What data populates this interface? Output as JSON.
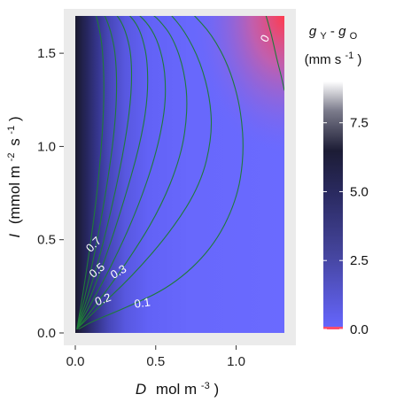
{
  "chart_data": {
    "type": "heatmap",
    "subtype": "filled-contour",
    "title": "",
    "x": {
      "variable": "D",
      "unit_base": "mol m",
      "unit_exponent": "-3",
      "range": [
        0,
        1.3
      ],
      "ticks": [
        0.0,
        0.5,
        1.0
      ],
      "tick_labels": [
        "0.0",
        "0.5",
        "1.0"
      ]
    },
    "y": {
      "variable": "I",
      "unit_base_1": "mmol m",
      "unit_exponent_1": "-2",
      "unit_base_2": "s",
      "unit_exponent_2": "-1",
      "range": [
        0,
        1.7
      ],
      "ticks": [
        0.0,
        0.5,
        1.0,
        1.5
      ],
      "tick_labels": [
        "0.0",
        "0.5",
        "1.0",
        "1.5"
      ]
    },
    "fill": {
      "legend_title_g": "g",
      "legend_title_y": "Y",
      "legend_title_sep": " - ",
      "legend_title_o": "O",
      "legend_unit": "(mm s",
      "legend_unit_exp": "-1",
      "legend_unit_close": ")",
      "range": [
        0,
        9
      ],
      "ticks": [
        0.0,
        2.5,
        5.0,
        7.5
      ],
      "tick_labels": [
        "0.0",
        "2.5",
        "5.0",
        "7.5"
      ],
      "colors": {
        "low_negative": "#ff4d6d",
        "zero": "#6666ff",
        "mid": "#2b2b6e",
        "high": "#1a1a2e",
        "top": "#ffffff"
      }
    },
    "contours": [
      {
        "level": "0",
        "D": [
          1.3,
          1.28,
          1.25,
          1.22,
          1.18
        ],
        "I": [
          1.3,
          1.38,
          1.48,
          1.6,
          1.72
        ]
      },
      {
        "level": "0.1",
        "D": [
          0.02,
          0.1,
          0.3,
          0.6,
          0.85,
          1.0,
          1.05,
          1.03,
          0.96,
          0.85,
          0.72
        ],
        "I": [
          0.02,
          0.06,
          0.13,
          0.25,
          0.45,
          0.7,
          0.95,
          1.2,
          1.42,
          1.6,
          1.72
        ]
      },
      {
        "level": "",
        "D": [
          0.01,
          0.1,
          0.35,
          0.6,
          0.78,
          0.85,
          0.84,
          0.78,
          0.68,
          0.58
        ],
        "I": [
          0.02,
          0.1,
          0.3,
          0.55,
          0.8,
          1.05,
          1.25,
          1.45,
          1.62,
          1.72
        ]
      },
      {
        "level": "0.2",
        "D": [
          0.01,
          0.1,
          0.3,
          0.52,
          0.66,
          0.7,
          0.68,
          0.61,
          0.52,
          0.46
        ],
        "I": [
          0.02,
          0.12,
          0.35,
          0.65,
          0.95,
          1.2,
          1.4,
          1.58,
          1.68,
          1.72
        ]
      },
      {
        "level": "0.3",
        "D": [
          0.01,
          0.08,
          0.22,
          0.38,
          0.5,
          0.56,
          0.56,
          0.52,
          0.46,
          0.38
        ],
        "I": [
          0.02,
          0.13,
          0.35,
          0.65,
          0.95,
          1.2,
          1.4,
          1.55,
          1.65,
          1.72
        ]
      },
      {
        "level": "",
        "D": [
          0.01,
          0.07,
          0.18,
          0.3,
          0.4,
          0.45,
          0.45,
          0.42,
          0.38,
          0.32
        ],
        "I": [
          0.02,
          0.14,
          0.38,
          0.7,
          1.0,
          1.25,
          1.45,
          1.58,
          1.66,
          1.72
        ]
      },
      {
        "level": "0.5",
        "D": [
          0.01,
          0.06,
          0.15,
          0.24,
          0.31,
          0.35,
          0.35,
          0.32,
          0.28,
          0.24
        ],
        "I": [
          0.02,
          0.15,
          0.4,
          0.72,
          1.02,
          1.28,
          1.48,
          1.6,
          1.68,
          1.72
        ]
      },
      {
        "level": "",
        "D": [
          0.01,
          0.05,
          0.12,
          0.19,
          0.24,
          0.26,
          0.25,
          0.22,
          0.19,
          0.17
        ],
        "I": [
          0.02,
          0.16,
          0.42,
          0.75,
          1.05,
          1.3,
          1.5,
          1.62,
          1.69,
          1.72
        ]
      },
      {
        "level": "0.7",
        "D": [
          0.01,
          0.04,
          0.09,
          0.14,
          0.17,
          0.18,
          0.17,
          0.15,
          0.13,
          0.12
        ],
        "I": [
          0.02,
          0.17,
          0.45,
          0.78,
          1.08,
          1.32,
          1.52,
          1.63,
          1.7,
          1.72
        ]
      }
    ]
  }
}
